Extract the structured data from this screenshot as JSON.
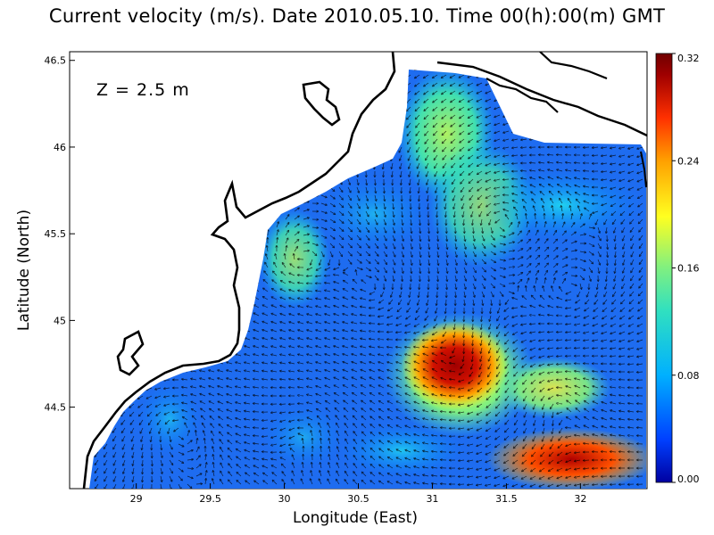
{
  "title": "Current velocity (m/s). Date 2010.05.10. Time 00(h):00(m) GMT",
  "depth_label": "Z = 2.5 m",
  "x_axis": {
    "label": "Longitude (East)",
    "ticks": [
      "29",
      "29.5",
      "30",
      "30.5",
      "31",
      "31.5",
      "32"
    ],
    "range": [
      28.55,
      32.45
    ]
  },
  "y_axis": {
    "label": "Latitude (North)",
    "ticks": [
      "44.5",
      "45",
      "45.5",
      "46",
      "46.5"
    ],
    "range": [
      44.03,
      46.55
    ]
  },
  "colorbar": {
    "ticks": [
      "0.00",
      "0.08",
      "0.16",
      "0.24",
      "0.32"
    ],
    "range": [
      0.0,
      0.32
    ],
    "unit": "m/s",
    "colormap": [
      "#0000a0",
      "#0050ff",
      "#00b0ff",
      "#30e0c0",
      "#a0f060",
      "#ffff20",
      "#ffa000",
      "#ff3000",
      "#a00000",
      "#700000"
    ]
  },
  "colors": {
    "land": "#ffffff",
    "coastline": "#000000",
    "arrows": "#000000"
  }
}
